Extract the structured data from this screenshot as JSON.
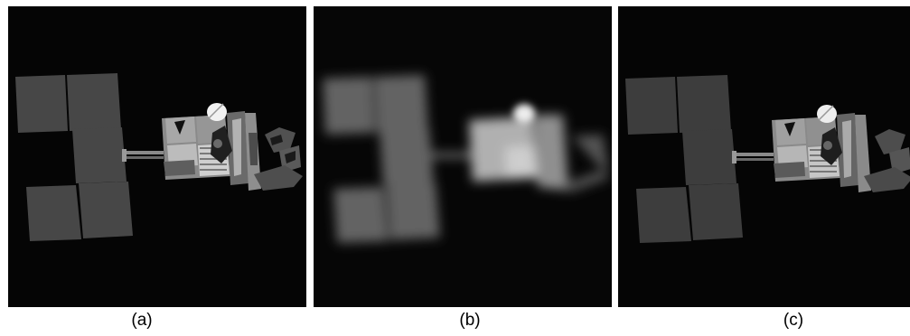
{
  "captions": {
    "a": "(a)",
    "b": "(b)",
    "c": "(c)"
  },
  "colors": {
    "background": "#ffffff",
    "panel_background": "#050505",
    "solar_panel_a": "#464646",
    "solar_panel_c": "#3c3c3c",
    "body_light": "#9a9a9a",
    "body_dark": "#3a3a3a",
    "dish": "#f2f2f2"
  },
  "panels": [
    {
      "id": "a",
      "variant": "original"
    },
    {
      "id": "b",
      "variant": "blurred"
    },
    {
      "id": "c",
      "variant": "restored"
    }
  ]
}
